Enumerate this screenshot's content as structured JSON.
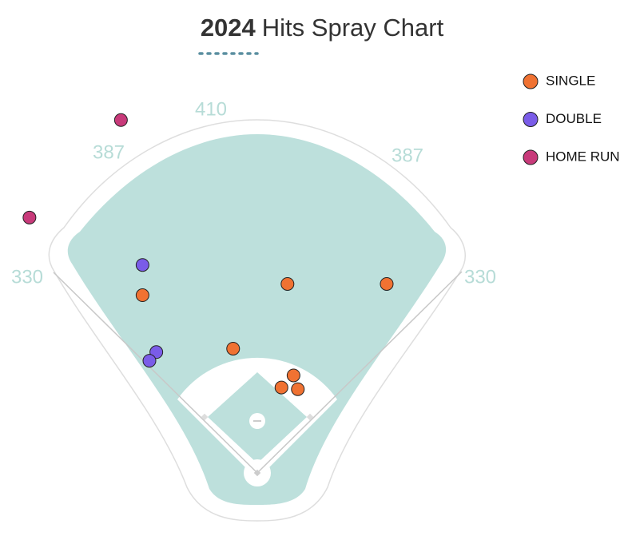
{
  "chart_data": {
    "type": "scatter",
    "title_year": "2024",
    "title": "Hits Spray Chart",
    "wall_distances": [
      330,
      387,
      410,
      387,
      330
    ],
    "series": [
      {
        "name": "SINGLE",
        "color": "#f07232",
        "x": [
          -133,
          35,
          150,
          -28,
          42,
          28,
          47
        ],
        "y": [
          206,
          219,
          219,
          144,
          113,
          99,
          97
        ]
      },
      {
        "name": "DOUBLE",
        "color": "#7a5ce8",
        "x": [
          -133,
          -117,
          -125
        ],
        "y": [
          241,
          140,
          130
        ]
      },
      {
        "name": "HOME RUN",
        "color": "#c83a7a",
        "x": [
          -158,
          -264
        ],
        "y": [
          409,
          296
        ]
      }
    ]
  }
}
